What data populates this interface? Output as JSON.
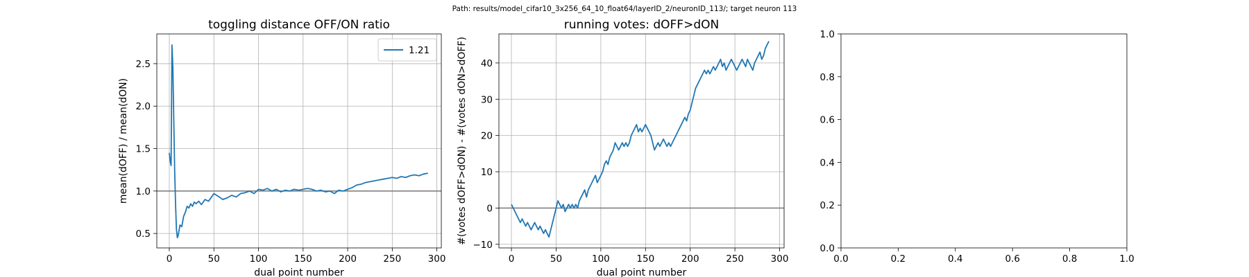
{
  "suptitle": "Path: results/model_cifar10_3x256_64_10_float64/layerID_2/neuronID_113/; target neuron 113",
  "chart_data": [
    {
      "type": "line",
      "title": "toggling distance OFF/ON ratio",
      "xlabel": "dual point number",
      "ylabel": "mean(dOFF) / mean(dON)",
      "xlim": [
        -14,
        305
      ],
      "ylim": [
        0.33,
        2.85
      ],
      "xticks": [
        0,
        50,
        100,
        150,
        200,
        250,
        300
      ],
      "yticks": [
        0.5,
        1.0,
        1.5,
        2.0,
        2.5
      ],
      "ytick_labels": [
        "0.5",
        "1.0",
        "1.5",
        "2.0",
        "2.5"
      ],
      "grid": true,
      "reference_line_y": 1.0,
      "legend": {
        "placement": "upper-right",
        "entries": [
          {
            "label": "1.21",
            "color": "#1f77b4"
          }
        ]
      },
      "series": [
        {
          "color": "#1f77b4",
          "x": [
            0,
            1,
            2,
            3,
            4,
            5,
            6,
            7,
            8,
            9,
            10,
            12,
            14,
            16,
            18,
            20,
            22,
            24,
            26,
            28,
            30,
            33,
            36,
            40,
            44,
            48,
            50,
            53,
            56,
            60,
            65,
            70,
            75,
            80,
            85,
            90,
            95,
            100,
            105,
            110,
            115,
            120,
            125,
            130,
            135,
            140,
            145,
            150,
            155,
            160,
            165,
            170,
            175,
            180,
            185,
            190,
            195,
            200,
            205,
            210,
            215,
            220,
            225,
            230,
            235,
            240,
            245,
            250,
            255,
            260,
            265,
            270,
            275,
            280,
            285,
            290
          ],
          "y": [
            1.45,
            1.35,
            1.3,
            2.72,
            2.45,
            1.85,
            1.25,
            0.85,
            0.55,
            0.45,
            0.48,
            0.6,
            0.58,
            0.7,
            0.75,
            0.82,
            0.8,
            0.85,
            0.82,
            0.87,
            0.85,
            0.88,
            0.84,
            0.9,
            0.88,
            0.94,
            0.97,
            0.95,
            0.93,
            0.9,
            0.92,
            0.95,
            0.93,
            0.97,
            0.98,
            1.0,
            0.97,
            1.02,
            1.01,
            1.03,
            1.0,
            1.02,
            0.99,
            1.01,
            1.0,
            1.02,
            1.01,
            1.02,
            1.03,
            1.02,
            1.0,
            1.01,
            0.99,
            1.0,
            0.97,
            1.01,
            1.0,
            1.02,
            1.04,
            1.07,
            1.08,
            1.1,
            1.11,
            1.12,
            1.13,
            1.14,
            1.15,
            1.16,
            1.15,
            1.17,
            1.16,
            1.18,
            1.19,
            1.18,
            1.2,
            1.21
          ]
        }
      ]
    },
    {
      "type": "line",
      "title": "running votes: dOFF>dON",
      "xlabel": "dual point number",
      "ylabel": "#(votes dOFF>dON) - #(votes dON>dOFF)",
      "xlim": [
        -14,
        305
      ],
      "ylim": [
        -11,
        48
      ],
      "xticks": [
        0,
        50,
        100,
        150,
        200,
        250,
        300
      ],
      "yticks": [
        -10,
        0,
        10,
        20,
        30,
        40
      ],
      "ytick_labels": [
        "−10",
        "0",
        "10",
        "20",
        "30",
        "40"
      ],
      "grid": true,
      "reference_line_y": 0,
      "series": [
        {
          "color": "#1f77b4",
          "x": [
            0,
            2,
            4,
            6,
            8,
            10,
            12,
            14,
            16,
            18,
            20,
            22,
            24,
            26,
            28,
            30,
            32,
            34,
            36,
            38,
            40,
            42,
            44,
            46,
            48,
            50,
            52,
            54,
            56,
            58,
            60,
            62,
            64,
            66,
            68,
            70,
            72,
            74,
            76,
            78,
            80,
            82,
            84,
            86,
            88,
            90,
            92,
            94,
            96,
            98,
            100,
            102,
            104,
            106,
            108,
            110,
            112,
            114,
            116,
            118,
            120,
            122,
            124,
            126,
            128,
            130,
            132,
            134,
            136,
            138,
            140,
            142,
            144,
            146,
            148,
            150,
            152,
            154,
            156,
            158,
            160,
            162,
            164,
            166,
            168,
            170,
            172,
            174,
            176,
            178,
            180,
            182,
            184,
            186,
            188,
            190,
            192,
            194,
            196,
            198,
            200,
            202,
            204,
            206,
            208,
            210,
            212,
            214,
            216,
            218,
            220,
            222,
            224,
            226,
            228,
            230,
            232,
            234,
            236,
            238,
            240,
            242,
            244,
            246,
            248,
            250,
            252,
            254,
            256,
            258,
            260,
            262,
            264,
            266,
            268,
            270,
            272,
            274,
            276,
            278,
            280,
            282,
            284,
            286,
            288
          ],
          "y": [
            1,
            0,
            -1,
            -2,
            -3,
            -4,
            -3,
            -4,
            -5,
            -4,
            -5,
            -6,
            -5,
            -4,
            -5,
            -6,
            -5,
            -6,
            -7,
            -6,
            -7,
            -8,
            -6,
            -4,
            -2,
            0,
            2,
            1,
            0,
            1,
            -1,
            0,
            1,
            0,
            1,
            0,
            1,
            0,
            2,
            3,
            4,
            5,
            3,
            5,
            6,
            7,
            8,
            9,
            7,
            8,
            9,
            10,
            12,
            13,
            12,
            14,
            15,
            16,
            18,
            17,
            16,
            17,
            18,
            17,
            18,
            17,
            18,
            20,
            21,
            22,
            23,
            21,
            22,
            21,
            22,
            23,
            22,
            21,
            20,
            18,
            16,
            17,
            18,
            17,
            18,
            19,
            18,
            17,
            18,
            17,
            18,
            19,
            20,
            21,
            22,
            23,
            24,
            25,
            24,
            26,
            27,
            29,
            31,
            33,
            34,
            35,
            36,
            37,
            38,
            37,
            38,
            37,
            38,
            39,
            38,
            39,
            40,
            41,
            39,
            40,
            38,
            39,
            40,
            41,
            40,
            39,
            38,
            39,
            40,
            41,
            40,
            39,
            41,
            40,
            39,
            38,
            40,
            41,
            42,
            43,
            41,
            42,
            44,
            45,
            46
          ]
        }
      ]
    },
    {
      "type": "line",
      "title": "",
      "xlabel": "",
      "ylabel": "",
      "xlim": [
        0,
        1
      ],
      "ylim": [
        0,
        1
      ],
      "xticks": [
        0,
        0.2,
        0.4,
        0.6,
        0.8,
        1.0
      ],
      "yticks": [
        0,
        0.2,
        0.4,
        0.6,
        0.8,
        1.0
      ],
      "xtick_labels": [
        "0.0",
        "0.2",
        "0.4",
        "0.6",
        "0.8",
        "1.0"
      ],
      "ytick_labels": [
        "0.0",
        "0.2",
        "0.4",
        "0.6",
        "0.8",
        "1.0"
      ],
      "grid": false,
      "series": []
    }
  ]
}
